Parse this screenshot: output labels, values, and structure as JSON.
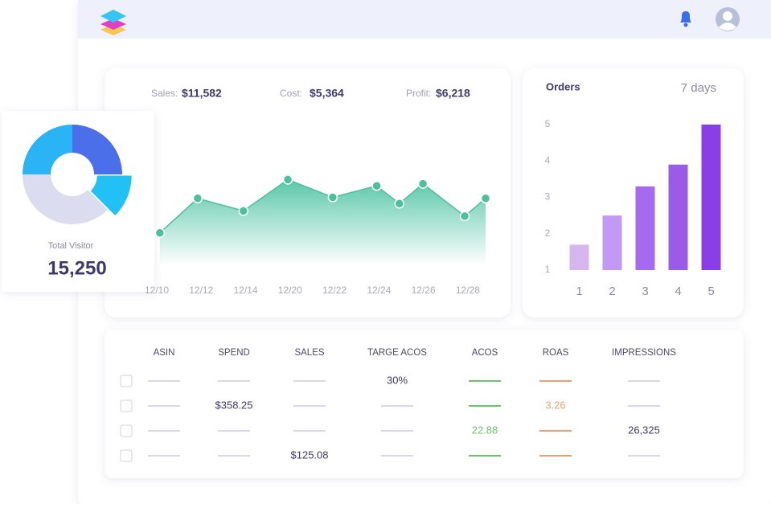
{
  "chart_data": [
    {
      "type": "area",
      "stats": [
        {
          "label": "Sales:",
          "value": "$11,582"
        },
        {
          "label": "Cost:",
          "value": "$5,364"
        },
        {
          "label": "Profit:",
          "value": "$6,218"
        }
      ],
      "x": [
        0.07,
        0.92,
        1.95,
        2.95,
        3.96,
        4.95,
        5.46,
        5.99,
        6.93,
        7.4
      ],
      "values": [
        3.1,
        6.4,
        5.2,
        8.2,
        6.5,
        7.6,
        5.9,
        7.8,
        4.7,
        6.4
      ],
      "xlim": [
        0,
        7.4
      ],
      "ylim": [
        0,
        10
      ],
      "xticks": [
        {
          "value": 0,
          "label": "12/10"
        },
        {
          "value": 1,
          "label": "12/12"
        },
        {
          "value": 2,
          "label": "12/14"
        },
        {
          "value": 3,
          "label": "12/20"
        },
        {
          "value": 4,
          "label": "12/22"
        },
        {
          "value": 5,
          "label": "12/24"
        },
        {
          "value": 6,
          "label": "12/26"
        },
        {
          "value": 7,
          "label": "12/28"
        }
      ],
      "color": "#4cbf9c"
    },
    {
      "type": "bar",
      "title": "Orders",
      "subtitle": "7 days",
      "categories": [
        "1",
        "2",
        "3",
        "4",
        "5"
      ],
      "values": [
        1.7,
        2.5,
        3.3,
        3.9,
        5
      ],
      "colors": [
        "#d7b6ef",
        "#c39af3",
        "#a56af0",
        "#9a5ce6",
        "#8a3fe6"
      ],
      "ylim": [
        1,
        5
      ],
      "yticks": [
        1,
        2,
        3,
        4,
        5
      ]
    },
    {
      "type": "donut",
      "values": [
        25,
        12.5,
        37.5,
        25
      ],
      "colors": [
        "#4b6fe8",
        "#22c1f5",
        "#dcdcf0",
        "#2ab4f5"
      ],
      "explode": [
        0,
        1,
        0,
        0
      ],
      "caption": "Total Visitor",
      "total": "15,250"
    }
  ],
  "table": {
    "columns": [
      "ASIN",
      "SPEND",
      "SALES",
      "TARGE ACOS",
      "ACOS",
      "ROAS",
      "IMPRESSIONS"
    ],
    "rows": [
      [
        null,
        null,
        null,
        "30%",
        null,
        null,
        null
      ],
      [
        null,
        "$358.25",
        null,
        null,
        null,
        "3.26",
        null
      ],
      [
        null,
        null,
        null,
        null,
        "22.88",
        null,
        "26,325"
      ],
      [
        null,
        null,
        "$125.08",
        null,
        null,
        null,
        null
      ]
    ]
  }
}
